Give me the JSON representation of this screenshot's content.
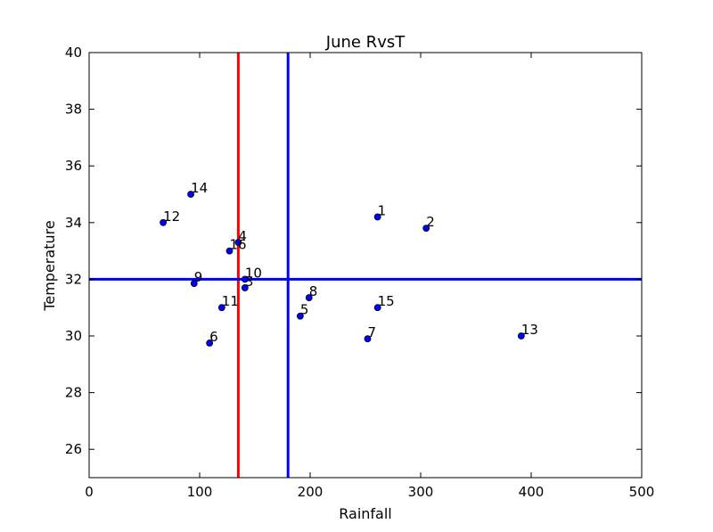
{
  "chart_data": {
    "type": "scatter",
    "title": "June RvsT",
    "xlabel": "Rainfall",
    "ylabel": "Temperature",
    "xlim": [
      0,
      500
    ],
    "ylim": [
      25,
      40
    ],
    "xticks": [
      0,
      100,
      200,
      300,
      400,
      500
    ],
    "yticks": [
      26,
      28,
      30,
      32,
      34,
      36,
      38,
      40
    ],
    "grid": false,
    "marker_color": "#0000ff",
    "points": [
      {
        "label": "1",
        "x": 261,
        "y": 34.2
      },
      {
        "label": "2",
        "x": 305,
        "y": 33.8
      },
      {
        "label": "3",
        "x": 141,
        "y": 31.7
      },
      {
        "label": "4",
        "x": 135,
        "y": 33.3
      },
      {
        "label": "5",
        "x": 191,
        "y": 30.7
      },
      {
        "label": "6",
        "x": 109,
        "y": 29.75
      },
      {
        "label": "7",
        "x": 252,
        "y": 29.9
      },
      {
        "label": "8",
        "x": 199,
        "y": 31.35
      },
      {
        "label": "9",
        "x": 95,
        "y": 31.85
      },
      {
        "label": "10",
        "x": 141,
        "y": 32.0
      },
      {
        "label": "11",
        "x": 120,
        "y": 31.0
      },
      {
        "label": "12",
        "x": 67,
        "y": 34.0
      },
      {
        "label": "13",
        "x": 391,
        "y": 30.0
      },
      {
        "label": "14",
        "x": 92,
        "y": 35.0
      },
      {
        "label": "15",
        "x": 261,
        "y": 31.0
      },
      {
        "label": "16",
        "x": 127,
        "y": 33.0
      }
    ],
    "reference_lines": [
      {
        "orientation": "vertical",
        "value": 135,
        "color": "#ff0000"
      },
      {
        "orientation": "vertical",
        "value": 180,
        "color": "#0000ff"
      },
      {
        "orientation": "horizontal",
        "value": 32,
        "color": "#0000ff"
      }
    ]
  }
}
